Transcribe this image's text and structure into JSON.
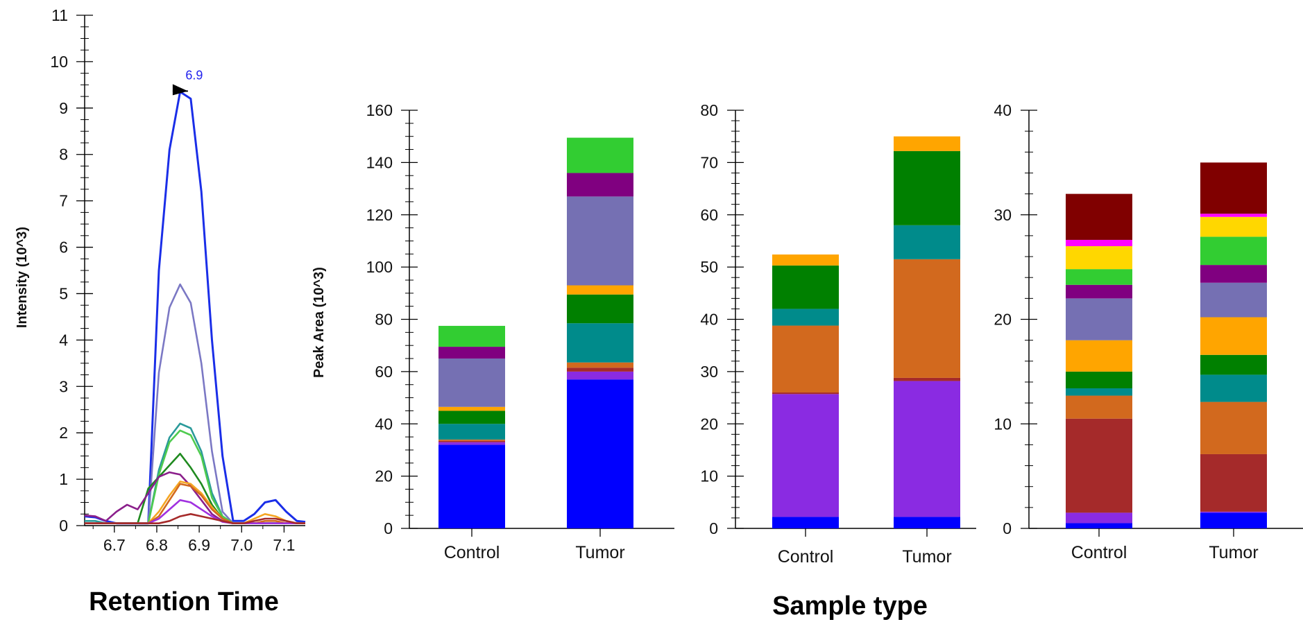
{
  "figure_labels": {
    "retention_time": "Retention Time",
    "sample_type": "Sample type"
  },
  "chart_data": [
    {
      "type": "line",
      "ylabel": "Intensity (10^3)",
      "xlabel": "Retention Time",
      "xlim": [
        6.63,
        7.15
      ],
      "ylim": [
        0,
        11
      ],
      "x_ticks": [
        "6.7",
        "6.8",
        "6.9",
        "7.0",
        "7.1"
      ],
      "y_ticks": [
        "0",
        "1",
        "2",
        "3",
        "4",
        "5",
        "6",
        "7",
        "8",
        "9",
        "10",
        "11"
      ],
      "annotation": {
        "text": "6.9",
        "x": 6.88,
        "y": 9.35
      },
      "x": [
        6.63,
        6.655,
        6.68,
        6.705,
        6.73,
        6.755,
        6.78,
        6.805,
        6.83,
        6.855,
        6.88,
        6.905,
        6.93,
        6.955,
        6.98,
        7.005,
        7.03,
        7.055,
        7.08,
        7.105,
        7.13,
        7.15
      ],
      "series": [
        {
          "color": "#1a2ee8",
          "values": [
            0.2,
            0.18,
            0.1,
            0.05,
            0.05,
            0.05,
            0.05,
            5.5,
            8.1,
            9.35,
            9.2,
            7.2,
            4.0,
            1.5,
            0.1,
            0.1,
            0.25,
            0.5,
            0.55,
            0.3,
            0.1,
            0.08
          ]
        },
        {
          "color": "#7b78c4",
          "values": [
            0.05,
            0.05,
            0.05,
            0.05,
            0.05,
            0.05,
            0.05,
            3.3,
            4.7,
            5.2,
            4.8,
            3.5,
            1.6,
            0.3,
            0.05,
            0.05,
            0.05,
            0.05,
            0.05,
            0.05,
            0.05,
            0.05
          ]
        },
        {
          "color": "#2a9a9a",
          "values": [
            0.1,
            0.1,
            0.05,
            0.05,
            0.05,
            0.05,
            0.05,
            1.2,
            1.9,
            2.2,
            2.1,
            1.6,
            0.7,
            0.2,
            0.05,
            0.05,
            0.05,
            0.05,
            0.05,
            0.05,
            0.05,
            0.05
          ]
        },
        {
          "color": "#4fcb4f",
          "values": [
            0.05,
            0.05,
            0.05,
            0.05,
            0.05,
            0.05,
            0.05,
            1.1,
            1.8,
            2.05,
            1.95,
            1.5,
            0.6,
            0.2,
            0.05,
            0.05,
            0.05,
            0.05,
            0.05,
            0.05,
            0.05,
            0.05
          ]
        },
        {
          "color": "#1f8a1f",
          "values": [
            0.05,
            0.05,
            0.05,
            0.05,
            0.05,
            0.05,
            0.8,
            1.05,
            1.3,
            1.55,
            1.25,
            0.9,
            0.45,
            0.15,
            0.05,
            0.05,
            0.05,
            0.05,
            0.05,
            0.05,
            0.05,
            0.05
          ]
        },
        {
          "color": "#8b1f8b",
          "values": [
            0.22,
            0.2,
            0.1,
            0.3,
            0.45,
            0.35,
            0.7,
            1.05,
            1.15,
            1.1,
            0.85,
            0.55,
            0.25,
            0.1,
            0.05,
            0.05,
            0.05,
            0.05,
            0.05,
            0.05,
            0.05,
            0.05
          ]
        },
        {
          "color": "#f5a623",
          "values": [
            0.05,
            0.05,
            0.05,
            0.05,
            0.05,
            0.05,
            0.05,
            0.3,
            0.65,
            0.95,
            0.9,
            0.7,
            0.4,
            0.15,
            0.05,
            0.05,
            0.15,
            0.25,
            0.2,
            0.1,
            0.05,
            0.05
          ]
        },
        {
          "color": "#d2691e",
          "values": [
            0.05,
            0.05,
            0.05,
            0.05,
            0.05,
            0.05,
            0.05,
            0.2,
            0.55,
            0.9,
            0.85,
            0.65,
            0.35,
            0.15,
            0.05,
            0.05,
            0.05,
            0.1,
            0.1,
            0.05,
            0.05,
            0.05
          ]
        },
        {
          "color": "#a030e0",
          "values": [
            0.05,
            0.05,
            0.05,
            0.05,
            0.05,
            0.05,
            0.05,
            0.15,
            0.35,
            0.55,
            0.5,
            0.35,
            0.2,
            0.08,
            0.05,
            0.05,
            0.05,
            0.05,
            0.05,
            0.05,
            0.05,
            0.05
          ]
        },
        {
          "color": "#a52a2a",
          "values": [
            0.05,
            0.05,
            0.05,
            0.05,
            0.05,
            0.05,
            0.05,
            0.05,
            0.1,
            0.2,
            0.25,
            0.2,
            0.15,
            0.1,
            0.05,
            0.05,
            0.1,
            0.15,
            0.15,
            0.1,
            0.05,
            0.05
          ]
        }
      ]
    },
    {
      "type": "bar",
      "stacked": true,
      "ylabel": "Peak Area (10^3)",
      "ylim": [
        0,
        160
      ],
      "y_ticks": [
        "0",
        "20",
        "40",
        "60",
        "80",
        "100",
        "120",
        "140",
        "160"
      ],
      "categories": [
        "Control",
        "Tumor"
      ],
      "series": [
        {
          "color": "#0000ff",
          "values": [
            32,
            57
          ]
        },
        {
          "color": "#8a2be2",
          "values": [
            1,
            3
          ]
        },
        {
          "color": "#a52a2a",
          "values": [
            0.5,
            1.5
          ]
        },
        {
          "color": "#d2691e",
          "values": [
            0.5,
            2
          ]
        },
        {
          "color": "#008b8b",
          "values": [
            6,
            15
          ]
        },
        {
          "color": "#008000",
          "values": [
            5,
            11
          ]
        },
        {
          "color": "#ffa500",
          "values": [
            1.5,
            3.5
          ]
        },
        {
          "color": "#7570b3",
          "values": [
            18.5,
            34
          ]
        },
        {
          "color": "#800080",
          "values": [
            4.5,
            9
          ]
        },
        {
          "color": "#32cd32",
          "values": [
            8,
            13.5
          ]
        }
      ]
    },
    {
      "type": "bar",
      "stacked": true,
      "xlabel": "Sample type",
      "ylim": [
        0,
        80
      ],
      "y_ticks": [
        "0",
        "10",
        "20",
        "30",
        "40",
        "50",
        "60",
        "70",
        "80"
      ],
      "categories": [
        "Control",
        "Tumor"
      ],
      "series": [
        {
          "color": "#0000ff",
          "values": [
            2.2,
            2.2
          ]
        },
        {
          "color": "#8a2be2",
          "values": [
            23.5,
            26
          ]
        },
        {
          "color": "#a52a2a",
          "values": [
            0.3,
            0.6
          ]
        },
        {
          "color": "#d2691e",
          "values": [
            12.8,
            22.7
          ]
        },
        {
          "color": "#008b8b",
          "values": [
            3.2,
            6.5
          ]
        },
        {
          "color": "#008000",
          "values": [
            8.3,
            14.2
          ]
        },
        {
          "color": "#ffa500",
          "values": [
            2.1,
            2.8
          ]
        }
      ]
    },
    {
      "type": "bar",
      "stacked": true,
      "ylim": [
        0,
        40
      ],
      "y_ticks": [
        "0",
        "10",
        "20",
        "30",
        "40"
      ],
      "categories": [
        "Control",
        "Tumor"
      ],
      "series": [
        {
          "color": "#0000ff",
          "values": [
            0.5,
            1.5
          ]
        },
        {
          "color": "#8a2be2",
          "values": [
            1,
            0.1
          ]
        },
        {
          "color": "#a52a2a",
          "values": [
            9,
            5.5
          ]
        },
        {
          "color": "#d2691e",
          "values": [
            2.2,
            5
          ]
        },
        {
          "color": "#008b8b",
          "values": [
            0.7,
            2.6
          ]
        },
        {
          "color": "#008000",
          "values": [
            1.6,
            1.9
          ]
        },
        {
          "color": "#ffa500",
          "values": [
            3,
            3.6
          ]
        },
        {
          "color": "#7570b3",
          "values": [
            4,
            3.3
          ]
        },
        {
          "color": "#800080",
          "values": [
            1.3,
            1.7
          ]
        },
        {
          "color": "#32cd32",
          "values": [
            1.5,
            2.7
          ]
        },
        {
          "color": "#ffd700",
          "values": [
            2.2,
            1.9
          ]
        },
        {
          "color": "#ff00ff",
          "values": [
            0.6,
            0.3
          ]
        },
        {
          "color": "#800000",
          "values": [
            4.4,
            4.9
          ]
        }
      ]
    }
  ]
}
